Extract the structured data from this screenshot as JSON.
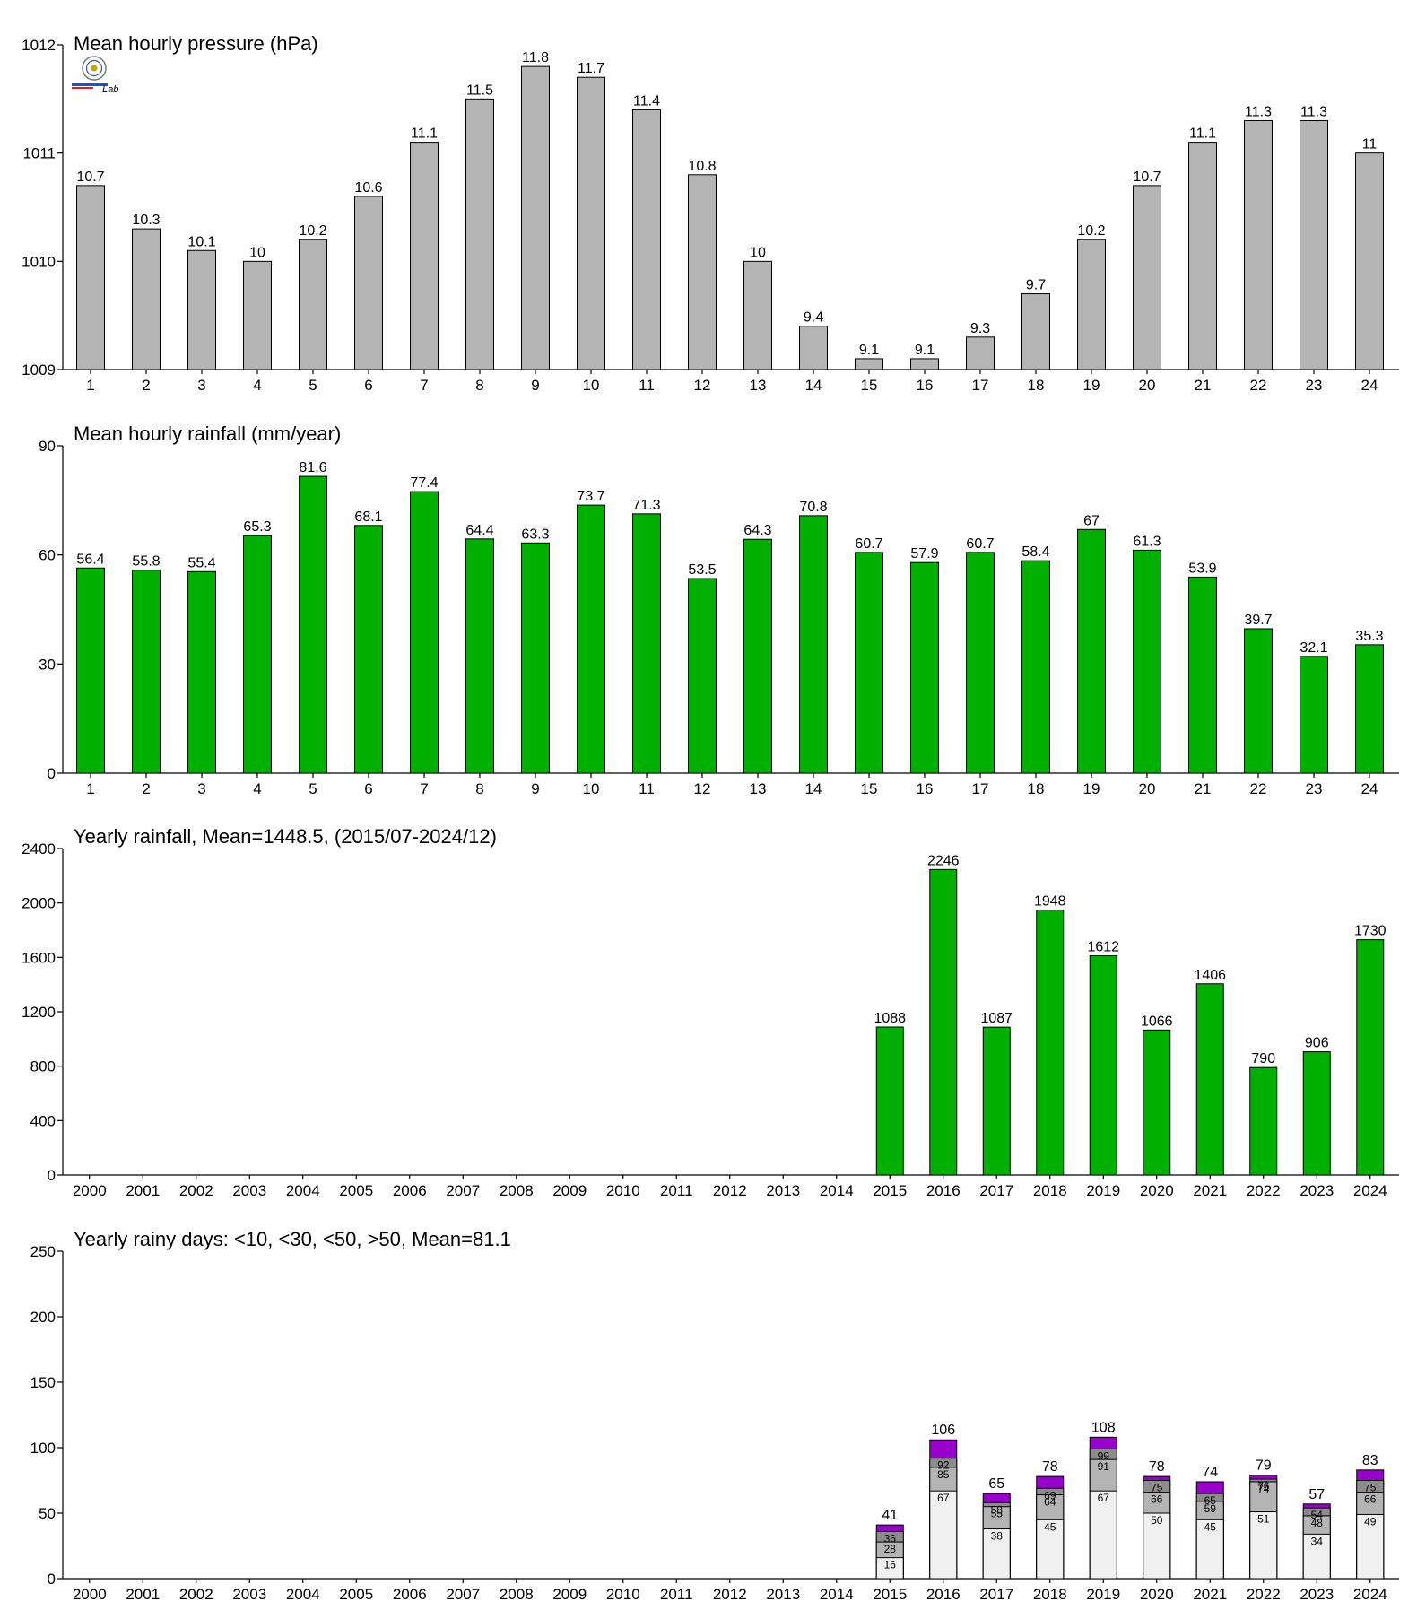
{
  "chart_data": [
    {
      "type": "bar",
      "title": "Mean hourly pressure (hPa)",
      "xlabel": "",
      "ylabel": "",
      "categories": [
        "1",
        "2",
        "3",
        "4",
        "5",
        "6",
        "7",
        "8",
        "9",
        "10",
        "11",
        "12",
        "13",
        "14",
        "15",
        "16",
        "17",
        "18",
        "19",
        "20",
        "21",
        "22",
        "23",
        "24"
      ],
      "values": [
        1010.7,
        1010.3,
        1010.1,
        1010,
        1010.2,
        1010.6,
        1011.1,
        1011.5,
        1011.8,
        1011.7,
        1011.4,
        1010.8,
        1010,
        1009.4,
        1009.1,
        1009.1,
        1009.3,
        1009.7,
        1010.2,
        1010.7,
        1011.1,
        1011.3,
        1011.3,
        1011
      ],
      "data_labels": [
        "10.7",
        "10.3",
        "10.1",
        "10",
        "10.2",
        "10.6",
        "11.1",
        "11.5",
        "11.8",
        "11.7",
        "11.4",
        "10.8",
        "10",
        "9.4",
        "9.1",
        "9.1",
        "9.3",
        "9.7",
        "10.2",
        "10.7",
        "11.1",
        "11.3",
        "11.3",
        "11"
      ],
      "ylim": [
        1009,
        1012
      ],
      "yticks": [
        1009,
        1010,
        1011,
        1012
      ],
      "color": "#b4b4b4",
      "grid": false,
      "logo": {
        "text": "Lab"
      }
    },
    {
      "type": "bar",
      "title": "Mean hourly rainfall (mm/year)",
      "xlabel": "",
      "ylabel": "",
      "categories": [
        "1",
        "2",
        "3",
        "4",
        "5",
        "6",
        "7",
        "8",
        "9",
        "10",
        "11",
        "12",
        "13",
        "14",
        "15",
        "16",
        "17",
        "18",
        "19",
        "20",
        "21",
        "22",
        "23",
        "24"
      ],
      "values": [
        56.4,
        55.8,
        55.4,
        65.3,
        81.6,
        68.1,
        77.4,
        64.4,
        63.3,
        73.7,
        71.3,
        53.5,
        64.3,
        70.8,
        60.7,
        57.9,
        60.7,
        58.4,
        67,
        61.3,
        53.9,
        39.7,
        32.1,
        35.3
      ],
      "data_labels": [
        "56.4",
        "55.8",
        "55.4",
        "65.3",
        "81.6",
        "68.1",
        "77.4",
        "64.4",
        "63.3",
        "73.7",
        "71.3",
        "53.5",
        "64.3",
        "70.8",
        "60.7",
        "57.9",
        "60.7",
        "58.4",
        "67",
        "61.3",
        "53.9",
        "39.7",
        "32.1",
        "35.3"
      ],
      "ylim": [
        0,
        90
      ],
      "yticks": [
        0,
        30,
        60,
        90
      ],
      "color": "#00b000",
      "grid": false
    },
    {
      "type": "bar",
      "title": "Yearly rainfall, Mean=1448.5, (2015/07-2024/12)",
      "xlabel": "",
      "ylabel": "",
      "categories": [
        "2000",
        "2001",
        "2002",
        "2003",
        "2004",
        "2005",
        "2006",
        "2007",
        "2008",
        "2009",
        "2010",
        "2011",
        "2012",
        "2013",
        "2014",
        "2015",
        "2016",
        "2017",
        "2018",
        "2019",
        "2020",
        "2021",
        "2022",
        "2023",
        "2024"
      ],
      "values": [
        null,
        null,
        null,
        null,
        null,
        null,
        null,
        null,
        null,
        null,
        null,
        null,
        null,
        null,
        null,
        1088,
        2246,
        1087,
        1948,
        1612,
        1066,
        1406,
        790,
        906,
        1730
      ],
      "data_labels": [
        "",
        "",
        "",
        "",
        "",
        "",
        "",
        "",
        "",
        "",
        "",
        "",
        "",
        "",
        "",
        "1088",
        "2246",
        "1087",
        "1948",
        "1612",
        "1066",
        "1406",
        "790",
        "906",
        "1730"
      ],
      "ylim": [
        0,
        2400
      ],
      "yticks": [
        0,
        400,
        800,
        1200,
        1600,
        2000,
        2400
      ],
      "color": "#00b000",
      "grid": false
    },
    {
      "type": "bar",
      "stacked": true,
      "title": "Yearly rainy days: <10, <30, <50, >50, Mean=81.1",
      "xlabel": "",
      "ylabel": "",
      "categories": [
        "2000",
        "2001",
        "2002",
        "2003",
        "2004",
        "2005",
        "2006",
        "2007",
        "2008",
        "2009",
        "2010",
        "2011",
        "2012",
        "2013",
        "2014",
        "2015",
        "2016",
        "2017",
        "2018",
        "2019",
        "2020",
        "2021",
        "2022",
        "2023",
        "2024"
      ],
      "cumulative": {
        "lt10": [
          null,
          null,
          null,
          null,
          null,
          null,
          null,
          null,
          null,
          null,
          null,
          null,
          null,
          null,
          null,
          16,
          67,
          38,
          45,
          67,
          50,
          45,
          51,
          34,
          49
        ],
        "lt30": [
          null,
          null,
          null,
          null,
          null,
          null,
          null,
          null,
          null,
          null,
          null,
          null,
          null,
          null,
          null,
          28,
          85,
          55,
          64,
          91,
          66,
          59,
          74,
          48,
          66
        ],
        "lt50": [
          null,
          null,
          null,
          null,
          null,
          null,
          null,
          null,
          null,
          null,
          null,
          null,
          null,
          null,
          null,
          36,
          92,
          58,
          69,
          99,
          75,
          65,
          76,
          54,
          75
        ],
        "total": [
          null,
          null,
          null,
          null,
          null,
          null,
          null,
          null,
          null,
          null,
          null,
          null,
          null,
          null,
          null,
          41,
          106,
          65,
          78,
          108,
          78,
          74,
          79,
          57,
          83
        ]
      },
      "labels": {
        "lt10": [
          "",
          "",
          "",
          "",
          "",
          "",
          "",
          "",
          "",
          "",
          "",
          "",
          "",
          "",
          "",
          "16",
          "67",
          "38",
          "45",
          "67",
          "50",
          "45",
          "51",
          "34",
          "49"
        ],
        "lt30": [
          "",
          "",
          "",
          "",
          "",
          "",
          "",
          "",
          "",
          "",
          "",
          "",
          "",
          "",
          "",
          "28",
          "85",
          "55",
          "64",
          "91",
          "66",
          "59",
          "74",
          "48",
          "66"
        ],
        "lt50": [
          "",
          "",
          "",
          "",
          "",
          "",
          "",
          "",
          "",
          "",
          "",
          "",
          "",
          "",
          "",
          "36",
          "92",
          "58",
          "69",
          "99",
          "75",
          "65",
          "76",
          "54",
          "75"
        ],
        "total": [
          "",
          "",
          "",
          "",
          "",
          "",
          "",
          "",
          "",
          "",
          "",
          "",
          "",
          "",
          "",
          "41",
          "106",
          "65",
          "78",
          "108",
          "78",
          "74",
          "79",
          "57",
          "83"
        ]
      },
      "colors": {
        "lt10": "#f0f0f0",
        "lt30": "#b4b4b4",
        "lt50": "#8c8c8c",
        "total": "#9900cc"
      },
      "ylim": [
        0,
        250
      ],
      "yticks": [
        0,
        50,
        100,
        150,
        200,
        250
      ],
      "grid": false
    }
  ]
}
